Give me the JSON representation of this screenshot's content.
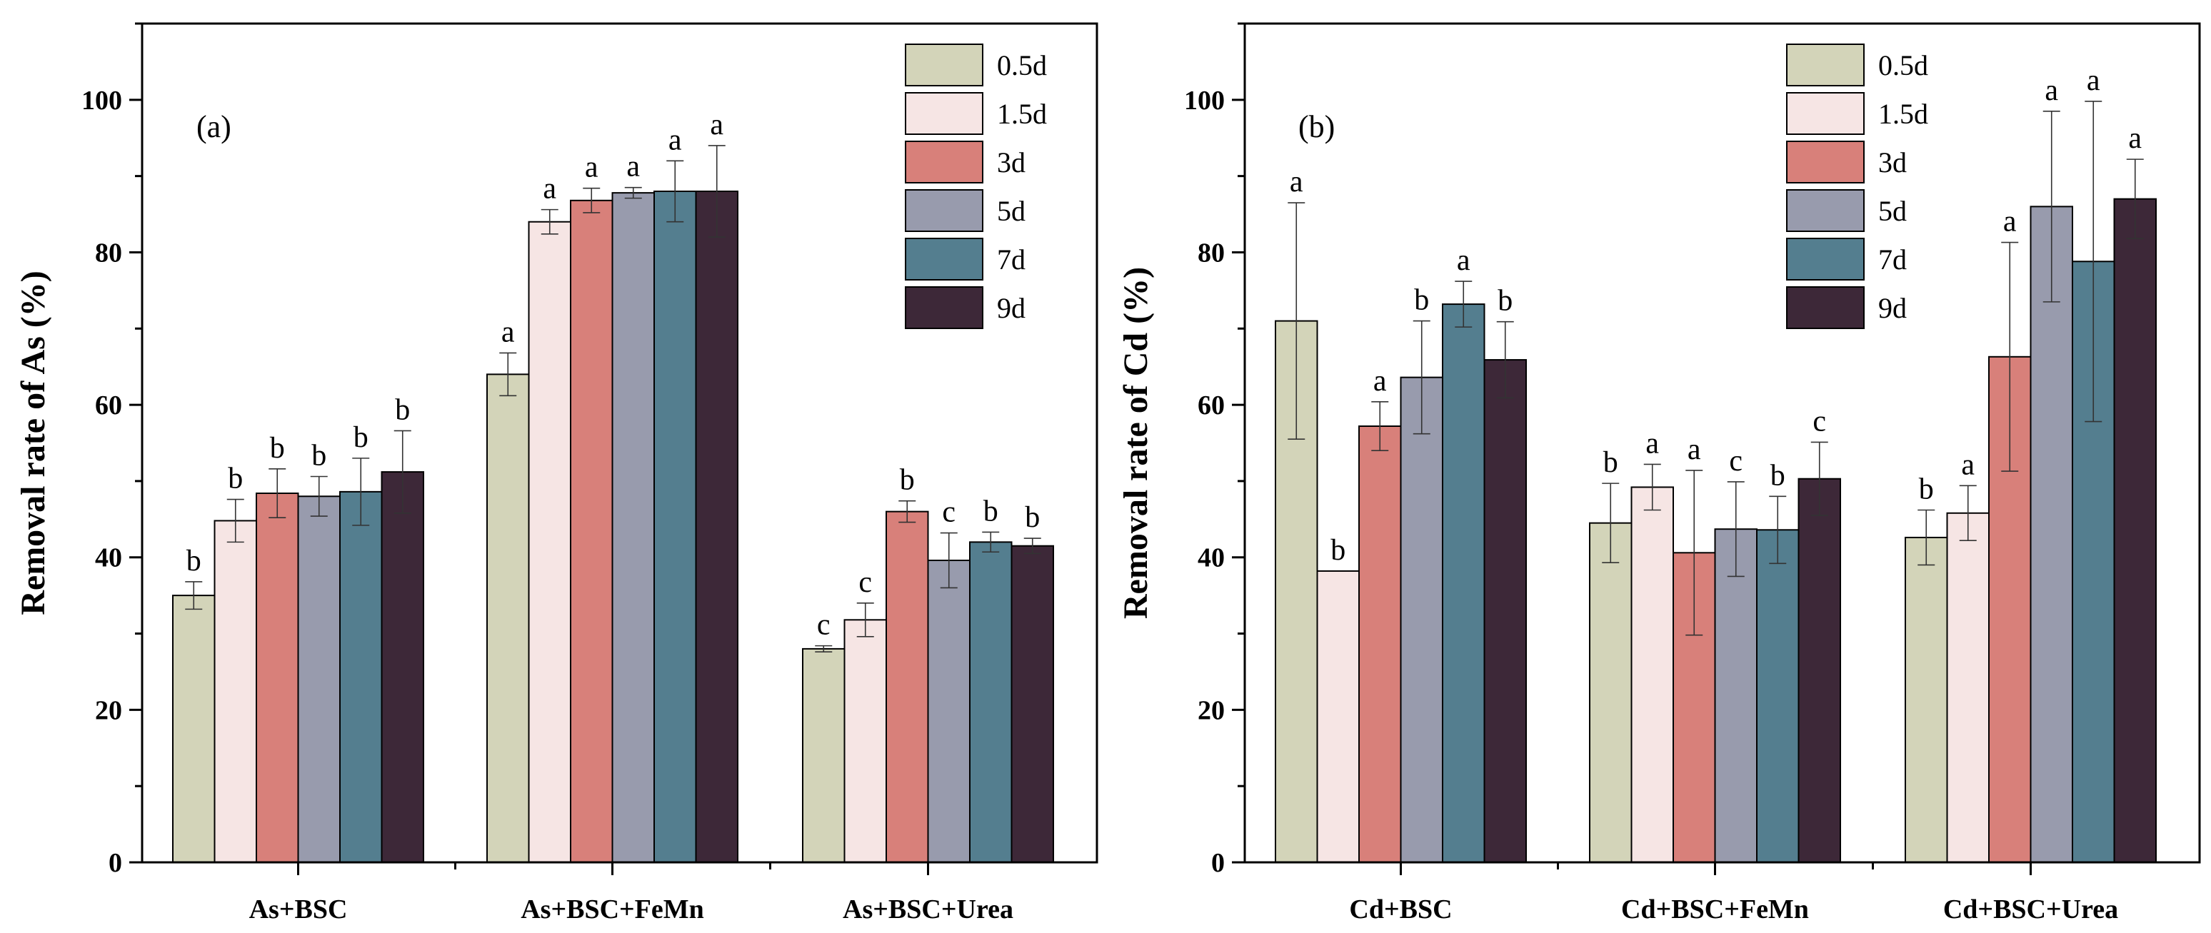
{
  "series_names": [
    "0.5d",
    "1.5d",
    "3d",
    "5d",
    "7d",
    "9d"
  ],
  "colors": {
    "0.5d": "#d3d4b9",
    "1.5d": "#f6e5e4",
    "3d": "#d8807a",
    "5d": "#989bad",
    "7d": "#547e8f",
    "9d": "#3d2838"
  },
  "chart_data": [
    {
      "type": "bar",
      "panel_label": "(a)",
      "ylabel": "Removal rate of As (%)",
      "ylim": [
        0,
        110
      ],
      "yticks": [
        0,
        20,
        40,
        60,
        80,
        100
      ],
      "categories": [
        "As+BSC",
        "As+BSC+FeMn",
        "As+BSC+Urea"
      ],
      "legend_position": "top-right",
      "grid": false,
      "series": [
        {
          "name": "0.5d",
          "values": [
            35,
            64,
            28
          ],
          "errors": [
            1.8,
            2.8,
            0.4
          ],
          "labels": [
            "b",
            "a",
            "c"
          ]
        },
        {
          "name": "1.5d",
          "values": [
            44.8,
            84,
            31.8
          ],
          "errors": [
            2.8,
            1.6,
            2.2
          ],
          "labels": [
            "b",
            "a",
            "c"
          ]
        },
        {
          "name": "3d",
          "values": [
            48.4,
            86.8,
            46
          ],
          "errors": [
            3.2,
            1.6,
            1.4
          ],
          "labels": [
            "b",
            "a",
            "b"
          ]
        },
        {
          "name": "5d",
          "values": [
            48,
            87.8,
            39.6
          ],
          "errors": [
            2.6,
            0.7,
            3.6
          ],
          "labels": [
            "b",
            "a",
            "c"
          ]
        },
        {
          "name": "7d",
          "values": [
            48.6,
            88,
            42
          ],
          "errors": [
            4.4,
            4.0,
            1.3
          ],
          "labels": [
            "b",
            "a",
            "b"
          ]
        },
        {
          "name": "9d",
          "values": [
            51.2,
            88,
            41.5
          ],
          "errors": [
            5.4,
            6.0,
            1.0
          ],
          "labels": [
            "b",
            "a",
            "b"
          ]
        }
      ]
    },
    {
      "type": "bar",
      "panel_label": "(b)",
      "ylabel": "Removal rate of Cd (%)",
      "ylim": [
        0,
        110
      ],
      "yticks": [
        0,
        20,
        40,
        60,
        80,
        100
      ],
      "categories": [
        "Cd+BSC",
        "Cd+BSC+FeMn",
        "Cd+BSC+Urea"
      ],
      "legend_position": "top-right",
      "grid": false,
      "series": [
        {
          "name": "0.5d",
          "values": [
            71,
            44.5,
            42.6
          ],
          "errors": [
            15.5,
            5.2,
            3.6
          ],
          "labels": [
            "a",
            "b",
            "b"
          ]
        },
        {
          "name": "1.5d",
          "values": [
            38.2,
            49.2,
            45.8
          ],
          "errors": [
            0,
            3.0,
            3.6
          ],
          "labels": [
            "b",
            "a",
            "a"
          ]
        },
        {
          "name": "3d",
          "values": [
            57.2,
            40.6,
            66.3
          ],
          "errors": [
            3.2,
            10.8,
            15.0
          ],
          "labels": [
            "a",
            "a",
            "a"
          ]
        },
        {
          "name": "5d",
          "values": [
            63.6,
            43.7,
            86
          ],
          "errors": [
            7.4,
            6.2,
            12.5
          ],
          "labels": [
            "b",
            "c",
            "a"
          ]
        },
        {
          "name": "7d",
          "values": [
            73.2,
            43.6,
            78.8
          ],
          "errors": [
            3.0,
            4.4,
            21.0
          ],
          "labels": [
            "a",
            "b",
            "a"
          ]
        },
        {
          "name": "9d",
          "values": [
            65.9,
            50.3,
            87
          ],
          "errors": [
            5.0,
            4.8,
            5.2
          ],
          "labels": [
            "b",
            "c",
            "a"
          ]
        }
      ]
    }
  ]
}
